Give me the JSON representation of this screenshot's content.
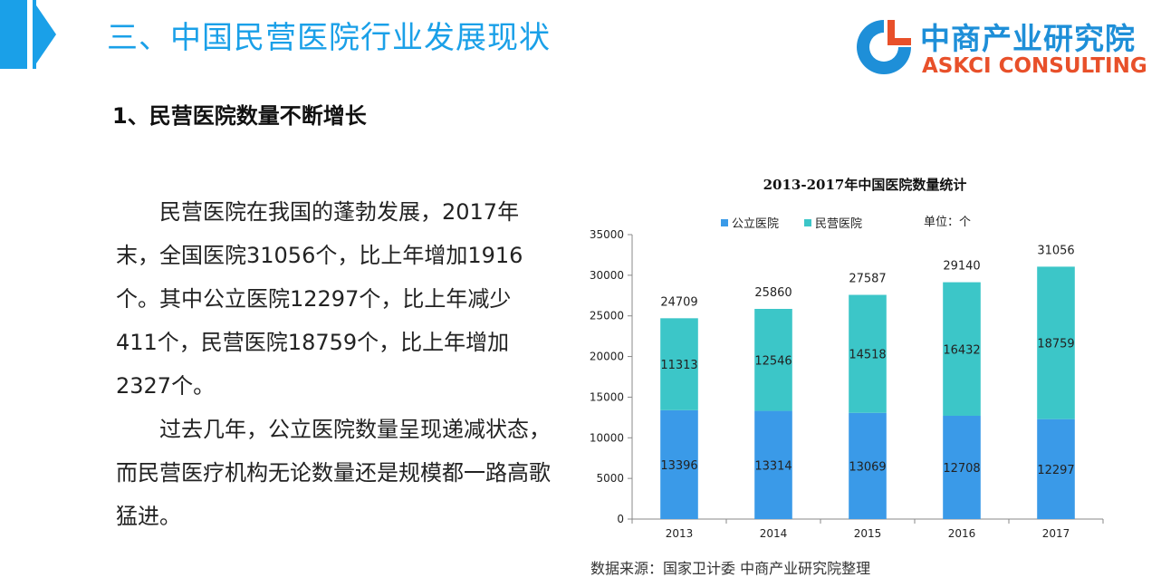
{
  "header": {
    "title": "三、中国民营医院行业发展现状",
    "logo_cn": "中商产业研究院",
    "logo_en": "ASKCI CONSULTING",
    "accent_color": "#1aa0e8"
  },
  "section": {
    "title": "1、民营医院数量不断增长"
  },
  "body": {
    "paragraphs": [
      "民营医院在我国的蓬勃发展，2017年末，全国医院31056个，比上年增加1916个。其中公立医院12297个，比上年减少411个，民营医院18759个，比上年增加2327个。",
      "过去几年，公立医院数量呈现递减状态，而民营医疗机构无论数量还是规模都一路高歌猛进。"
    ]
  },
  "source": "数据来源：国家卫计委 中商产业研究院整理",
  "chart_data": {
    "type": "bar",
    "stacked": true,
    "title": "2013-2017年中国医院数量统计",
    "unit_label": "单位：个",
    "categories": [
      "2013",
      "2014",
      "2015",
      "2016",
      "2017"
    ],
    "series": [
      {
        "name": "公立医院",
        "color": "#3a9ae8",
        "values": [
          13396,
          13314,
          13069,
          12708,
          12297
        ]
      },
      {
        "name": "民营医院",
        "color": "#3cc6c8",
        "values": [
          11313,
          12546,
          14518,
          16432,
          18759
        ]
      }
    ],
    "totals": [
      24709,
      25860,
      27587,
      29140,
      31056
    ],
    "ylim": [
      0,
      35000
    ],
    "yticks": [
      0,
      5000,
      10000,
      15000,
      20000,
      25000,
      30000,
      35000
    ],
    "legend_position": "top-left",
    "grid": false
  }
}
